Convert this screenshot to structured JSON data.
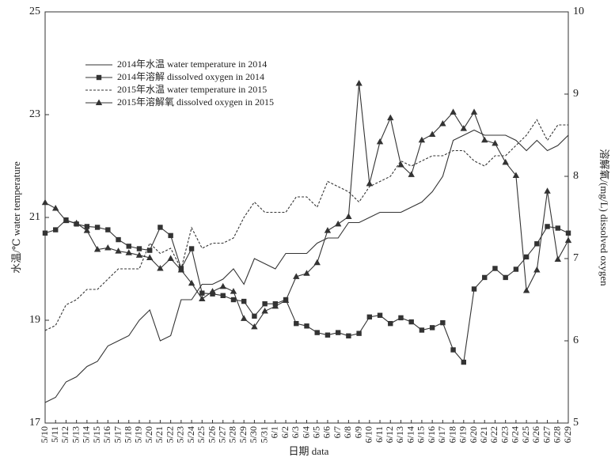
{
  "chart_data": {
    "type": "line",
    "xlabel": "日期 data",
    "ylabel": "水温/℃ water temperature",
    "y2label": "溶解氧/(mg/L) dissolved oxygen",
    "categories": [
      "5/10",
      "5/11",
      "5/12",
      "5/13",
      "5/14",
      "5/15",
      "5/16",
      "5/17",
      "5/18",
      "5/19",
      "5/20",
      "5/21",
      "5/22",
      "5/23",
      "5/24",
      "5/25",
      "5/26",
      "5/27",
      "5/28",
      "5/29",
      "5/30",
      "5/31",
      "6/1",
      "6/2",
      "6/3",
      "6/4",
      "6/5",
      "6/6",
      "6/7",
      "6/8",
      "6/9",
      "6/10",
      "6/11",
      "6/12",
      "6/13",
      "6/14",
      "6/15",
      "6/16",
      "6/17",
      "6/18",
      "6/19",
      "6/20",
      "6/21",
      "6/22",
      "6/23",
      "6/24",
      "6/25",
      "6/26",
      "6/27",
      "6/28",
      "6/29"
    ],
    "ylim": [
      17,
      25
    ],
    "yticks": [
      17,
      19,
      21,
      23,
      25
    ],
    "y2lim": [
      5,
      10
    ],
    "y2ticks": [
      5,
      6,
      7,
      8,
      9,
      10
    ],
    "legend": "upper left",
    "series": [
      {
        "name": "2014年水温 water temperature in 2014",
        "color": "#333333",
        "dash": "solid",
        "marker": "none",
        "axis": "y",
        "values": [
          17.4,
          17.5,
          17.8,
          17.9,
          18.1,
          18.2,
          18.5,
          18.6,
          18.7,
          19.0,
          19.2,
          18.6,
          18.7,
          19.4,
          19.4,
          19.7,
          19.7,
          19.8,
          20.0,
          19.7,
          20.2,
          20.1,
          20.0,
          20.3,
          20.3,
          20.3,
          20.5,
          20.6,
          20.6,
          20.9,
          20.9,
          21.0,
          21.1,
          21.1,
          21.1,
          21.2,
          21.3,
          21.5,
          21.8,
          22.5,
          22.6,
          22.7,
          22.6,
          22.6,
          22.6,
          22.5,
          22.3,
          22.5,
          22.3,
          22.4,
          22.6
        ]
      },
      {
        "name": "2014年溶解 dissolved oxygen in 2014",
        "color": "#333333",
        "dash": "solid",
        "marker": "square",
        "axis": "y2",
        "values": [
          7.31,
          7.35,
          7.47,
          7.42,
          7.39,
          7.38,
          7.35,
          7.23,
          7.15,
          7.12,
          7.1,
          7.38,
          7.28,
          6.88,
          7.12,
          6.58,
          6.57,
          6.55,
          6.5,
          6.48,
          6.3,
          6.45,
          6.45,
          6.5,
          6.21,
          6.18,
          6.1,
          6.07,
          6.1,
          6.06,
          6.09,
          6.29,
          6.31,
          6.21,
          6.28,
          6.23,
          6.13,
          6.16,
          6.22,
          5.89,
          5.74,
          6.63,
          6.77,
          6.88,
          6.77,
          6.87,
          7.02,
          7.18,
          7.39,
          7.37,
          7.31
        ]
      },
      {
        "name": "2015年水温 water temperature in 2015",
        "color": "#333333",
        "dash": "dashed",
        "marker": "none",
        "axis": "y",
        "values": [
          18.8,
          18.9,
          19.3,
          19.4,
          19.6,
          19.6,
          19.8,
          20.0,
          20.0,
          20.0,
          20.5,
          20.3,
          20.4,
          20.0,
          20.8,
          20.4,
          20.5,
          20.5,
          20.6,
          21.0,
          21.3,
          21.1,
          21.1,
          21.1,
          21.4,
          21.4,
          21.2,
          21.7,
          21.6,
          21.5,
          21.3,
          21.6,
          21.7,
          21.8,
          22.1,
          22.0,
          22.1,
          22.2,
          22.2,
          22.3,
          22.3,
          22.1,
          22.0,
          22.2,
          22.2,
          22.4,
          22.6,
          22.9,
          22.5,
          22.8,
          22.8
        ]
      },
      {
        "name": "2015年溶解氧 dissolved oxygen in 2015",
        "color": "#333333",
        "dash": "solid",
        "marker": "triangle",
        "axis": "y2",
        "values": [
          7.68,
          7.61,
          7.46,
          7.43,
          7.34,
          7.11,
          7.13,
          7.09,
          7.07,
          7.04,
          7.01,
          6.88,
          7.0,
          6.86,
          6.7,
          6.51,
          6.6,
          6.66,
          6.6,
          6.27,
          6.17,
          6.36,
          6.42,
          6.49,
          6.78,
          6.82,
          6.95,
          7.34,
          7.42,
          7.51,
          9.13,
          7.91,
          8.42,
          8.71,
          8.14,
          8.02,
          8.44,
          8.51,
          8.64,
          8.78,
          8.58,
          8.78,
          8.44,
          8.4,
          8.17,
          8.01,
          6.61,
          6.86,
          7.82,
          6.99,
          7.22
        ]
      }
    ]
  }
}
